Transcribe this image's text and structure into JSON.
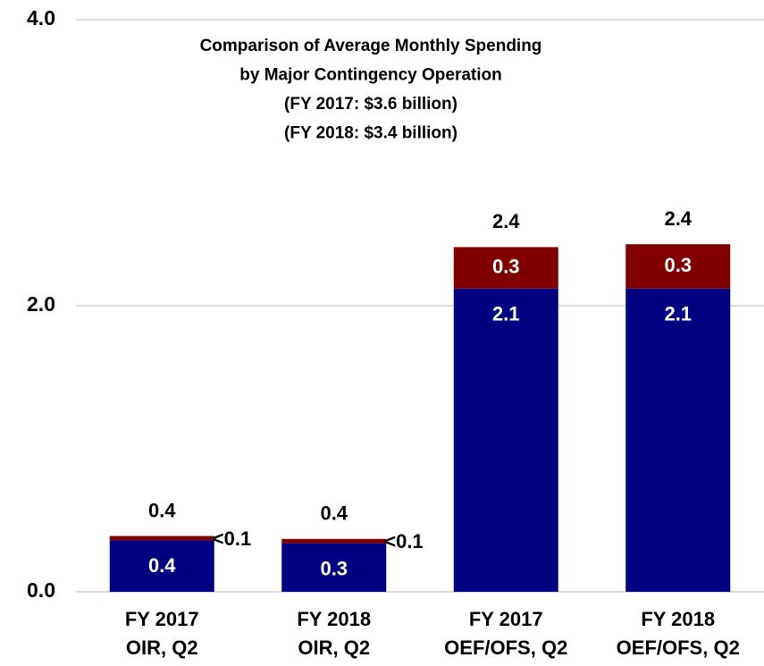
{
  "chart_data": {
    "type": "stacked_bar",
    "title": [
      "Comparison of Average Monthly Spending",
      "by Major Contingency Operation",
      "(FY 2017: $3.6 billion)",
      "(FY 2018: $3.4 billion)"
    ],
    "categories": [
      [
        "FY 2017",
        "OIR, Q2"
      ],
      [
        "FY 2018",
        "OIR, Q2"
      ],
      [
        "FY 2017",
        "OEF/OFS, Q2"
      ],
      [
        "FY 2018",
        "OEF/OFS, Q2"
      ]
    ],
    "series": [
      {
        "color": "#000080",
        "values": [
          0.36,
          0.34,
          2.12,
          2.12
        ],
        "value_labels": [
          "0.4",
          "0.3",
          "2.1",
          "2.1"
        ]
      },
      {
        "color": "#800000",
        "values": [
          0.03,
          0.03,
          0.29,
          0.31
        ],
        "value_labels": [
          "<0.1",
          "<0.1",
          "0.3",
          "0.3"
        ]
      }
    ],
    "totals": [
      0.39,
      0.37,
      2.41,
      2.43
    ],
    "total_labels": [
      "0.4",
      "0.4",
      "2.4",
      "2.4"
    ],
    "ylim": [
      0,
      4
    ],
    "yticks": [
      {
        "value": 0,
        "label": "0.0"
      },
      {
        "value": 2,
        "label": "2.0"
      },
      {
        "value": 4,
        "label": "4.0"
      }
    ],
    "grid": true
  }
}
